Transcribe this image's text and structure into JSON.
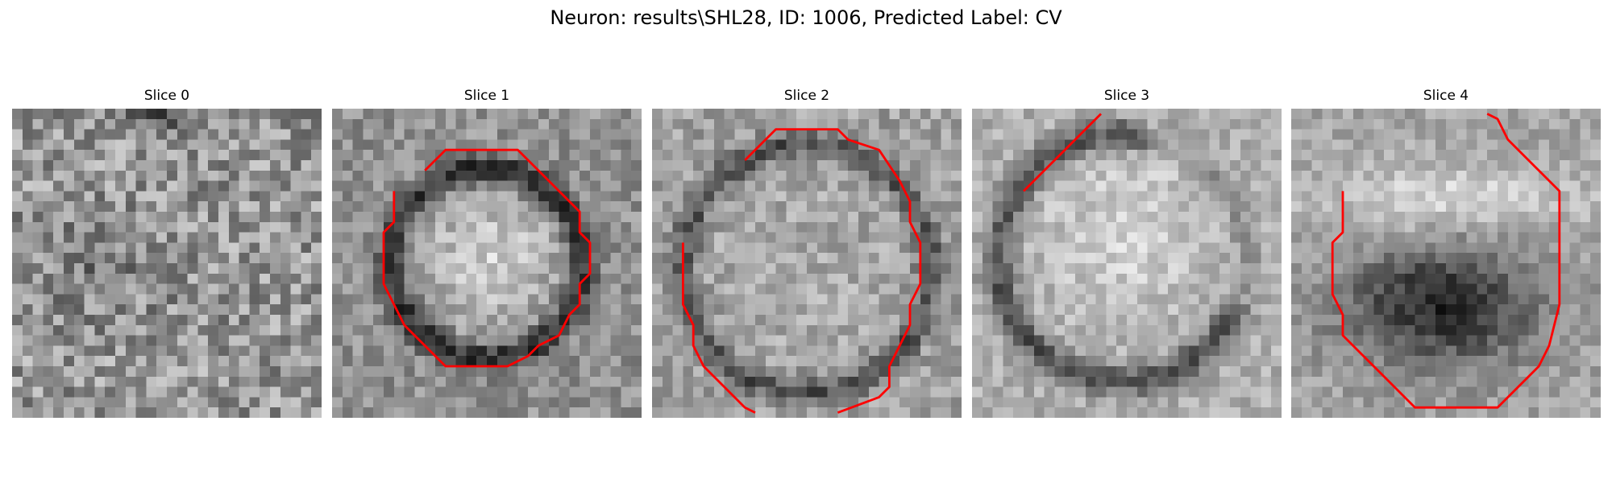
{
  "figure": {
    "title": "Neuron: results\\SHL28, ID: 1006, Predicted Label: CV"
  },
  "slices": [
    {
      "title": "Slice 0",
      "has_contour": false
    },
    {
      "title": "Slice 1",
      "has_contour": true
    },
    {
      "title": "Slice 2",
      "has_contour": true
    },
    {
      "title": "Slice 3",
      "has_contour": true
    },
    {
      "title": "Slice 4",
      "has_contour": true
    }
  ],
  "colors": {
    "contour": "#ff0000",
    "background": "#ffffff"
  },
  "image": {
    "grid": 30,
    "colormap": "gray"
  }
}
